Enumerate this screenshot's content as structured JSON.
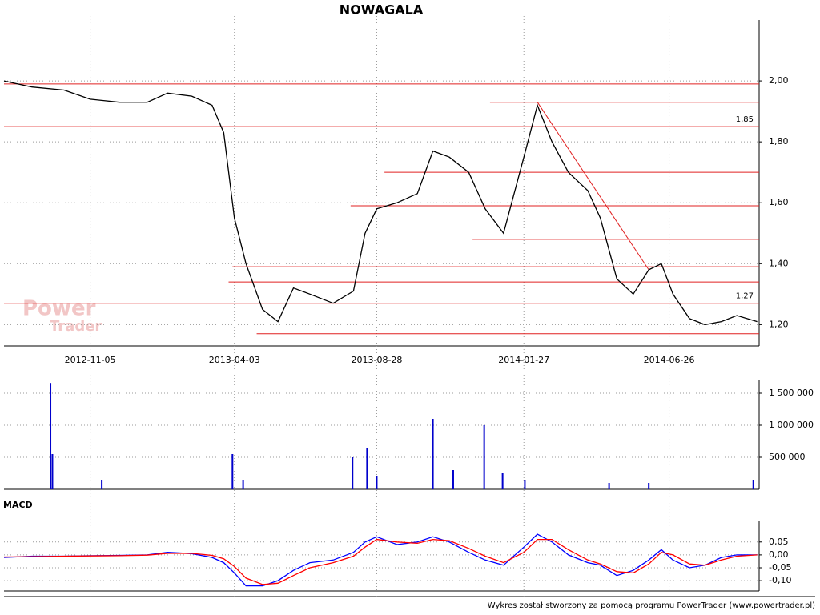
{
  "title": "NOWAGALA",
  "watermark": [
    "Power",
    "Trader"
  ],
  "footer": "Wykres został stworzony za pomocą programu PowerTrader (www.powertrader.pl)",
  "chart_data": [
    {
      "type": "line",
      "xlim": [
        "2012-08-08",
        "2014-09-27"
      ],
      "xticks": [
        "2012-11-05",
        "2013-04-03",
        "2013-08-28",
        "2014-01-27",
        "2014-06-26"
      ],
      "ylim": [
        1.13,
        2.2
      ],
      "yticks": [
        {
          "value": 1.2,
          "label": "1,20"
        },
        {
          "value": 1.4,
          "label": "1,40"
        },
        {
          "value": 1.6,
          "label": "1,60"
        },
        {
          "value": 1.8,
          "label": "1,80"
        },
        {
          "value": 2.0,
          "label": "2,00"
        }
      ],
      "x": [
        "2012-08-08",
        "2012-09-06",
        "2012-10-09",
        "2012-11-05",
        "2012-12-05",
        "2013-01-03",
        "2013-01-24",
        "2013-02-18",
        "2013-03-11",
        "2013-03-23",
        "2013-04-03",
        "2013-04-15",
        "2013-05-02",
        "2013-05-18",
        "2013-06-03",
        "2013-06-20",
        "2013-07-14",
        "2013-08-04",
        "2013-08-16",
        "2013-08-28",
        "2013-09-18",
        "2013-10-09",
        "2013-10-25",
        "2013-11-11",
        "2013-12-01",
        "2013-12-18",
        "2014-01-06",
        "2014-01-27",
        "2014-02-10",
        "2014-02-25",
        "2014-03-14",
        "2014-04-03",
        "2014-04-16",
        "2014-05-03",
        "2014-05-20",
        "2014-06-05",
        "2014-06-18",
        "2014-06-30",
        "2014-07-17",
        "2014-08-02",
        "2014-08-19",
        "2014-09-04",
        "2014-09-25"
      ],
      "series": [
        {
          "color": "#000000",
          "values": [
            2.0,
            1.98,
            1.97,
            1.94,
            1.93,
            1.93,
            1.96,
            1.95,
            1.92,
            1.83,
            1.55,
            1.4,
            1.25,
            1.21,
            1.32,
            1.3,
            1.27,
            1.31,
            1.5,
            1.58,
            1.6,
            1.63,
            1.77,
            1.75,
            1.7,
            1.58,
            1.5,
            1.75,
            1.92,
            1.8,
            1.7,
            1.64,
            1.55,
            1.35,
            1.3,
            1.38,
            1.4,
            1.3,
            1.22,
            1.2,
            1.21,
            1.23,
            1.21
          ]
        }
      ],
      "level_color": "#e02020",
      "levels": [
        {
          "value": 1.99,
          "from": "2012-08-08"
        },
        {
          "value": 1.93,
          "from": "2013-12-23"
        },
        {
          "value": 1.85,
          "from": "2012-08-08",
          "label": "1,85"
        },
        {
          "value": 1.7,
          "from": "2013-09-05"
        },
        {
          "value": 1.59,
          "from": "2013-08-01"
        },
        {
          "value": 1.48,
          "from": "2013-12-05"
        },
        {
          "value": 1.39,
          "from": "2013-04-01"
        },
        {
          "value": 1.34,
          "from": "2013-03-28"
        },
        {
          "value": 1.27,
          "from": "2012-08-08",
          "label": "1,27"
        },
        {
          "value": 1.17,
          "from": "2013-04-26"
        }
      ],
      "trend": {
        "x": [
          "2014-02-10",
          "2014-06-05"
        ],
        "values": [
          1.93,
          1.38
        ]
      }
    },
    {
      "type": "bar",
      "xlim": [
        "2012-08-08",
        "2014-09-27"
      ],
      "ylim": [
        0,
        1700000
      ],
      "yticks": [
        {
          "value": 500000,
          "label": "500 000"
        },
        {
          "value": 1000000,
          "label": "1 000 000"
        },
        {
          "value": 1500000,
          "label": "1 500 000"
        }
      ],
      "color": "#0000cc",
      "x": [
        "2012-09-25",
        "2012-09-27",
        "2012-11-17",
        "2013-04-01",
        "2013-04-12",
        "2013-08-03",
        "2013-08-18",
        "2013-08-28",
        "2013-10-25",
        "2013-11-15",
        "2013-12-17",
        "2014-01-05",
        "2014-01-28",
        "2014-04-25",
        "2014-06-05",
        "2014-09-21"
      ],
      "values": [
        1660000,
        550000,
        150000,
        550000,
        150000,
        500000,
        650000,
        200000,
        1100000,
        300000,
        1000000,
        250000,
        150000,
        100000,
        100000,
        150000
      ]
    },
    {
      "type": "line",
      "label": "MACD",
      "xlim": [
        "2012-08-08",
        "2014-09-27"
      ],
      "ylim": [
        -0.14,
        0.13
      ],
      "yticks": [
        {
          "value": -0.1,
          "label": "-0,10"
        },
        {
          "value": -0.05,
          "label": "-0,05"
        },
        {
          "value": 0,
          "label": "0,00"
        },
        {
          "value": 0.05,
          "label": "0,05"
        }
      ],
      "x": [
        "2012-08-08",
        "2012-09-06",
        "2012-10-09",
        "2012-11-05",
        "2012-12-05",
        "2013-01-03",
        "2013-01-24",
        "2013-02-18",
        "2013-03-11",
        "2013-03-23",
        "2013-04-03",
        "2013-04-15",
        "2013-05-02",
        "2013-05-18",
        "2013-06-03",
        "2013-06-20",
        "2013-07-14",
        "2013-08-04",
        "2013-08-16",
        "2013-08-28",
        "2013-09-18",
        "2013-10-09",
        "2013-10-25",
        "2013-11-11",
        "2013-12-01",
        "2013-12-18",
        "2014-01-06",
        "2014-01-27",
        "2014-02-10",
        "2014-02-25",
        "2014-03-14",
        "2014-04-03",
        "2014-04-16",
        "2014-05-03",
        "2014-05-20",
        "2014-06-05",
        "2014-06-18",
        "2014-06-30",
        "2014-07-17",
        "2014-08-02",
        "2014-08-19",
        "2014-09-04",
        "2014-09-25"
      ],
      "series": [
        {
          "color": "#0000ff",
          "values": [
            -0.01,
            -0.005,
            -0.005,
            -0.003,
            -0.002,
            0.0,
            0.01,
            0.005,
            -0.01,
            -0.03,
            -0.07,
            -0.12,
            -0.12,
            -0.1,
            -0.06,
            -0.03,
            -0.02,
            0.01,
            0.05,
            0.07,
            0.04,
            0.05,
            0.07,
            0.05,
            0.01,
            -0.02,
            -0.04,
            0.03,
            0.08,
            0.05,
            0.0,
            -0.03,
            -0.04,
            -0.08,
            -0.06,
            -0.02,
            0.02,
            -0.02,
            -0.05,
            -0.04,
            -0.01,
            0.0,
            0.0
          ]
        },
        {
          "color": "#ff0000",
          "values": [
            -0.008,
            -0.007,
            -0.005,
            -0.004,
            -0.003,
            -0.001,
            0.006,
            0.006,
            -0.002,
            -0.015,
            -0.045,
            -0.09,
            -0.115,
            -0.11,
            -0.08,
            -0.05,
            -0.03,
            -0.005,
            0.03,
            0.06,
            0.05,
            0.045,
            0.06,
            0.055,
            0.025,
            -0.005,
            -0.03,
            0.01,
            0.06,
            0.06,
            0.02,
            -0.02,
            -0.035,
            -0.065,
            -0.07,
            -0.035,
            0.01,
            0.0,
            -0.035,
            -0.04,
            -0.02,
            -0.005,
            0.0
          ]
        }
      ]
    }
  ]
}
